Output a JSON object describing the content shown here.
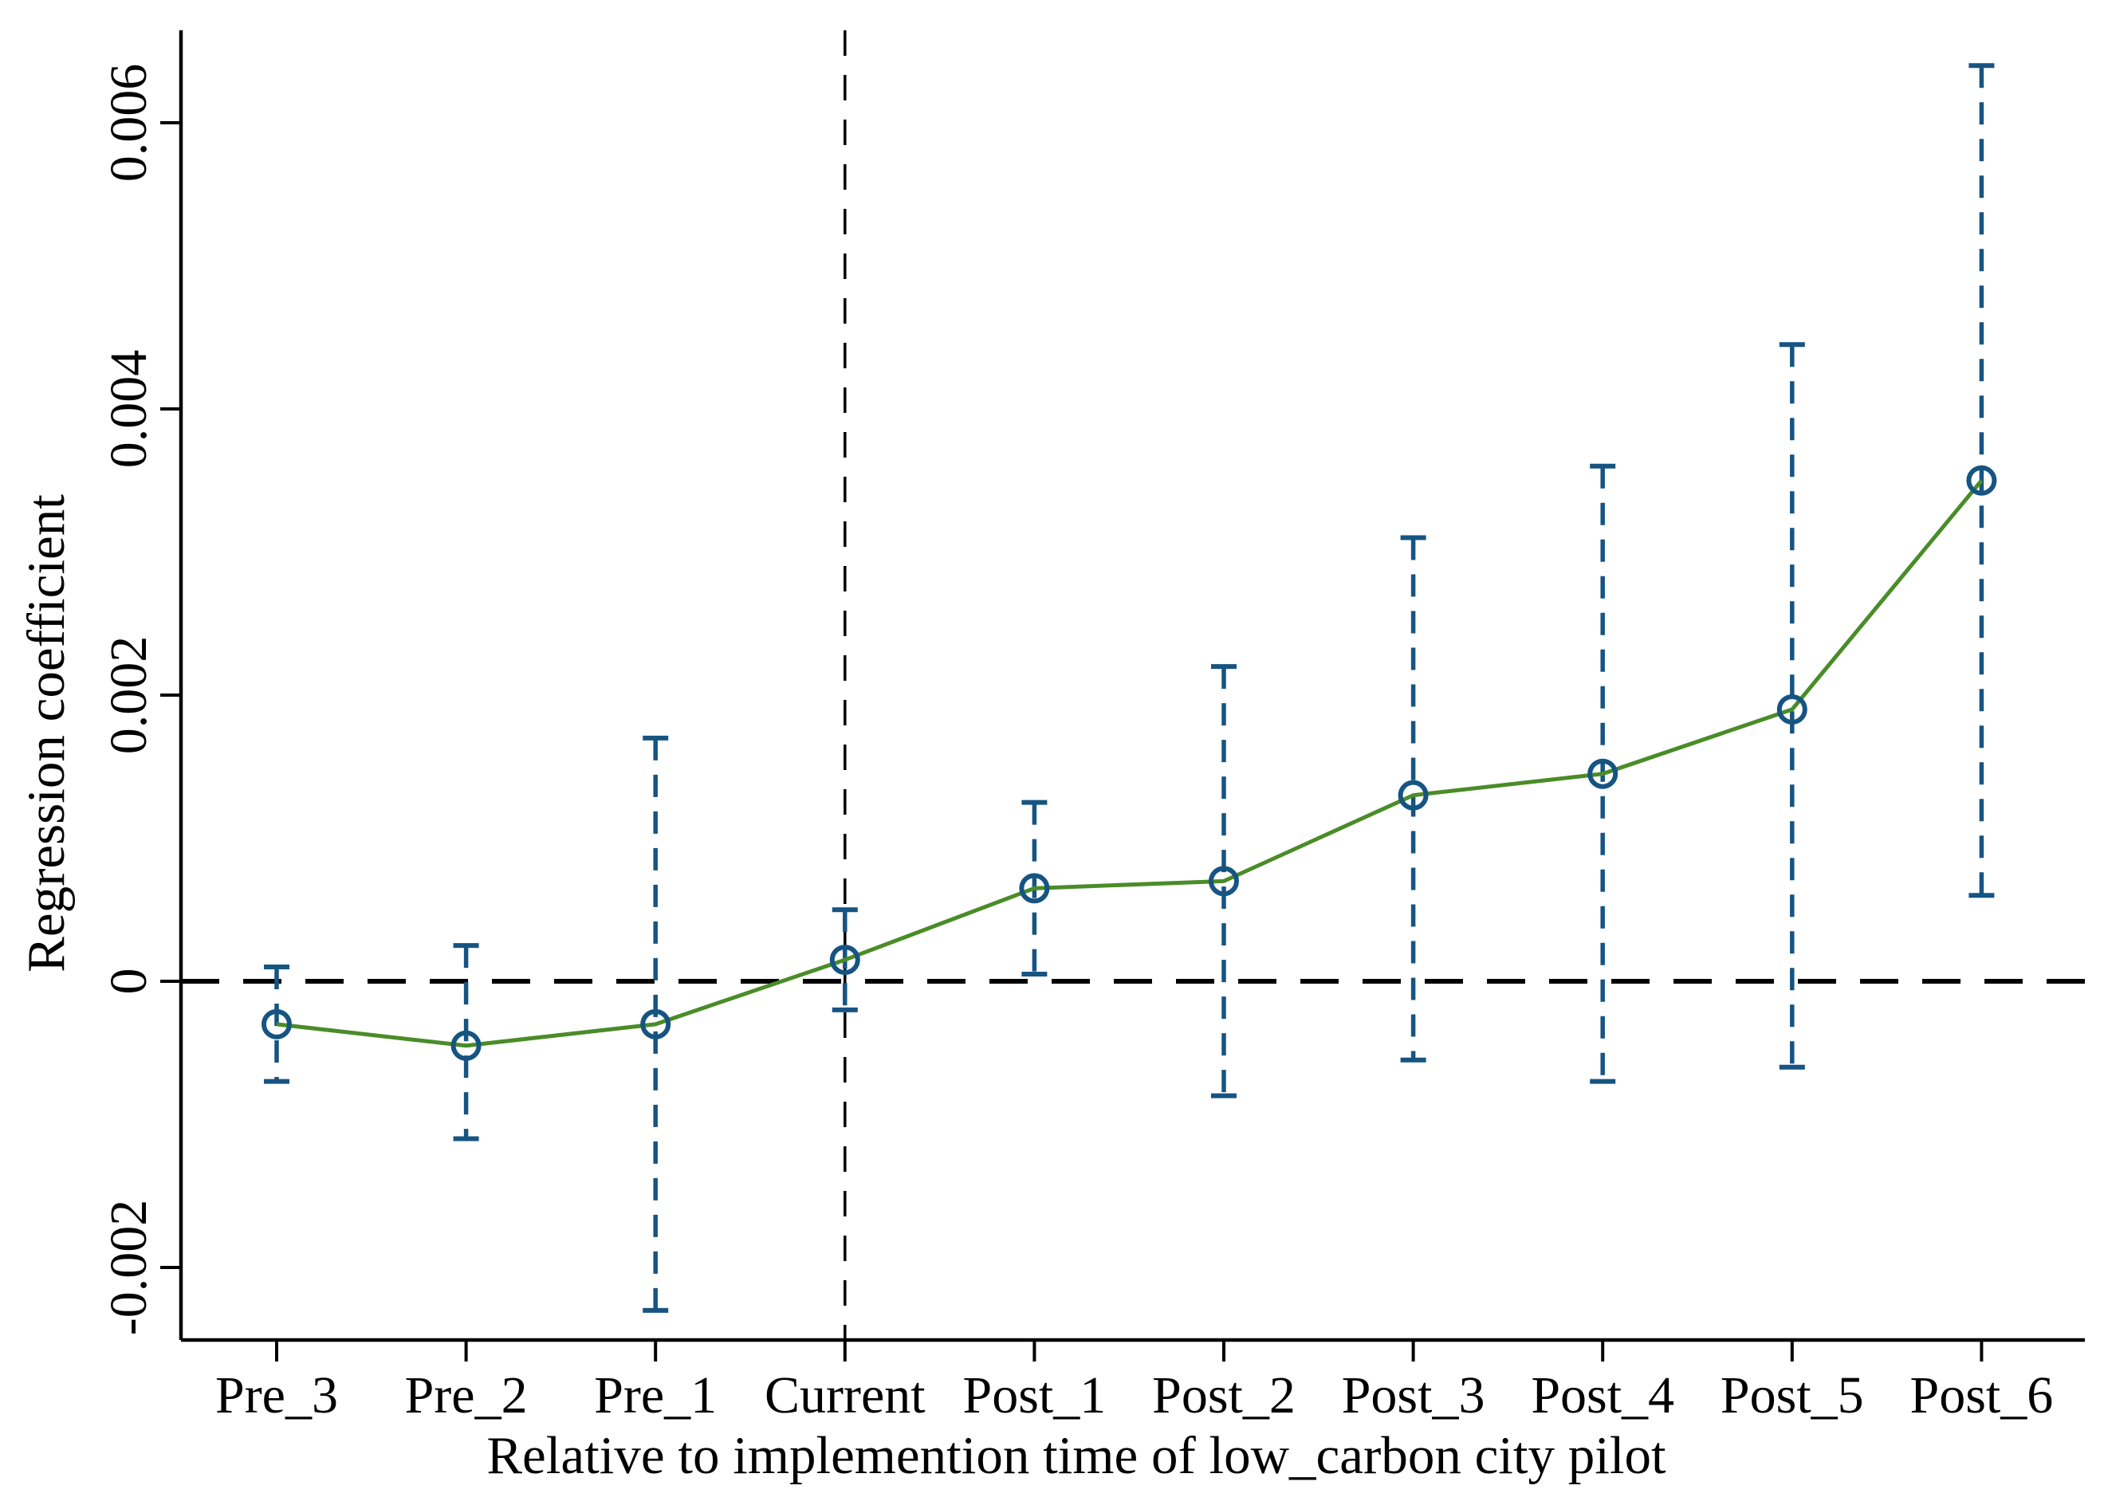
{
  "chart_data": {
    "type": "line",
    "title": "",
    "xlabel": "Relative to implemention time of low_carbon city pilot",
    "ylabel": "Regression coefficient",
    "categories": [
      "Pre_3",
      "Pre_2",
      "Pre_1",
      "Current",
      "Post_1",
      "Post_2",
      "Post_3",
      "Post_4",
      "Post_5",
      "Post_6"
    ],
    "series": [
      {
        "name": "Regression coefficient",
        "values": [
          -0.0003,
          -0.00045,
          -0.0003,
          0.00015,
          0.00065,
          0.0007,
          0.0013,
          0.00145,
          0.0019,
          0.0035
        ],
        "ci_lower": [
          -0.0007,
          -0.0011,
          -0.0023,
          -0.0002,
          5e-05,
          -0.0008,
          -0.00055,
          -0.0007,
          -0.0006,
          0.0006
        ],
        "ci_upper": [
          0.0001,
          0.00025,
          0.0017,
          0.0005,
          0.00125,
          0.0022,
          0.0031,
          0.0036,
          0.00445,
          0.0064
        ]
      }
    ],
    "y_ticks": [
      -0.002,
      0,
      0.002,
      0.004,
      0.006
    ],
    "y_tick_labels": [
      "-0.002",
      "0",
      "0.002",
      "0.004",
      "0.006"
    ],
    "ylim": [
      -0.00251,
      0.00665
    ],
    "reference_lines": {
      "horizontal_y": 0,
      "vertical_category": "Current"
    },
    "grid": false,
    "legend": false,
    "marker": "open-circle",
    "line_style": "solid",
    "error_bar_style": "dashed-with-caps",
    "colors": {
      "line": "#4a8c28",
      "marker": "#165482",
      "error_bar": "#165482",
      "reference": "#000000",
      "text": "#000000"
    }
  }
}
